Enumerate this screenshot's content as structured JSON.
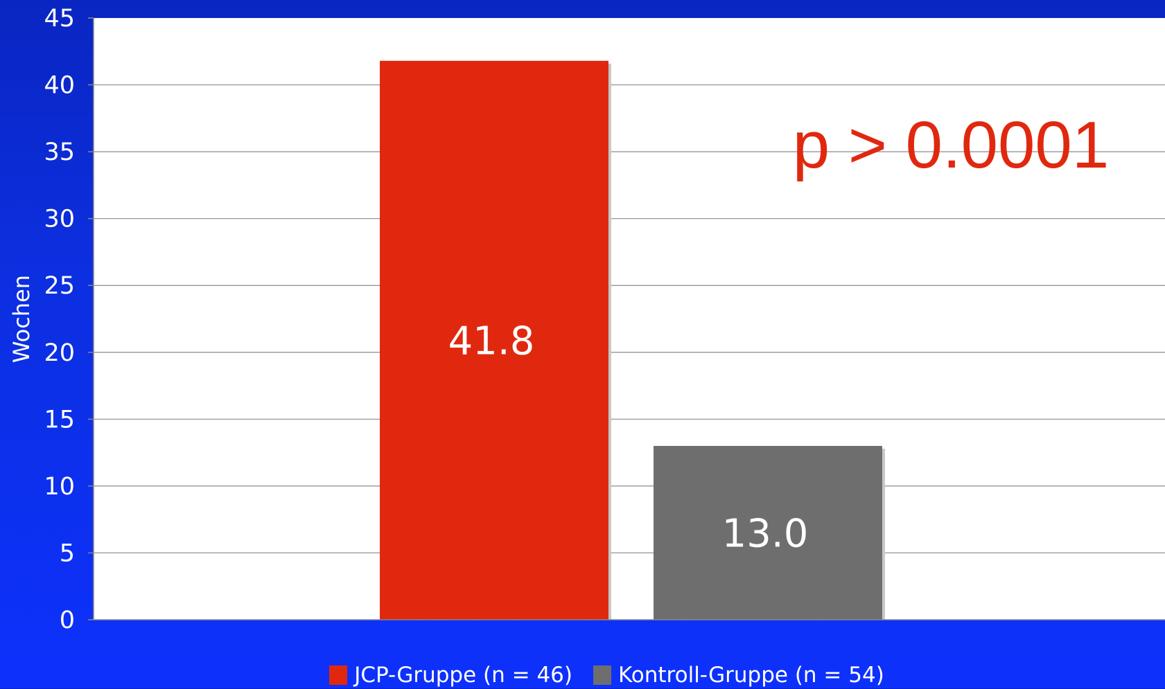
{
  "chart_data": {
    "type": "bar",
    "title": "",
    "xlabel": "",
    "ylabel": "Wochen",
    "ylim": [
      0,
      45
    ],
    "yticks": [
      0,
      5,
      10,
      15,
      20,
      25,
      30,
      35,
      40,
      45
    ],
    "grid": true,
    "legend_position": "bottom",
    "series": [
      {
        "name": "JCP-Gruppe (n = 46)",
        "value": 41.8,
        "label": "41.8",
        "color": "#e0280f"
      },
      {
        "name": "Kontroll-Gruppe (n = 54)",
        "value": 13.0,
        "label": "13.0",
        "color": "#6e6e6e"
      }
    ],
    "annotations": [
      {
        "text": "p > 0.0001",
        "color": "#e0280f"
      }
    ]
  }
}
